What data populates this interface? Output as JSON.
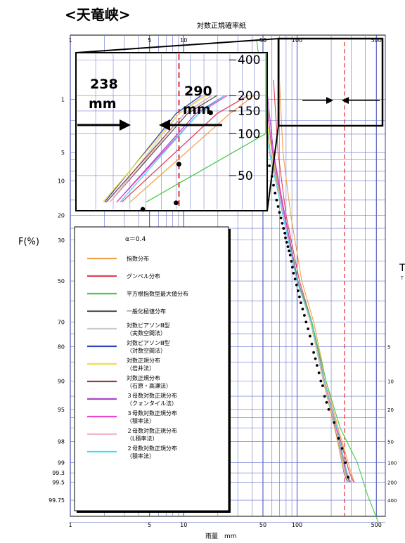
{
  "chart_data": {
    "type": "line",
    "title": "<天竜峡>",
    "paper_title": "対数正規確率紙",
    "xlabel": "雨量　mm",
    "ylabel": "F(%)",
    "right_label": "T",
    "right_label_small": "T",
    "x_scale": "log",
    "x_range": [
      1,
      600
    ],
    "y_scale": "normal-probability",
    "x_ticks": [
      {
        "value": 1,
        "label": "1"
      },
      {
        "value": 5,
        "label": "5"
      },
      {
        "value": 10,
        "label": "10"
      },
      {
        "value": 50,
        "label": "50"
      },
      {
        "value": 100,
        "label": "100"
      },
      {
        "value": 500,
        "label": "500"
      }
    ],
    "y_ticks": [
      {
        "value": 0.25,
        "label": "99.75"
      },
      {
        "value": 0.5,
        "label": "99.5"
      },
      {
        "value": 0.7,
        "label": "99.3"
      },
      {
        "value": 1,
        "label": "99"
      },
      {
        "value": 2,
        "label": "98"
      },
      {
        "value": 5,
        "label": "95"
      },
      {
        "value": 10,
        "label": "90"
      },
      {
        "value": 20,
        "label": "80"
      },
      {
        "value": 30,
        "label": "70"
      },
      {
        "value": 50,
        "label": "50"
      },
      {
        "value": 70,
        "label": "30"
      },
      {
        "value": 80,
        "label": "20"
      },
      {
        "value": 90,
        "label": "10"
      },
      {
        "value": 95,
        "label": "5"
      },
      {
        "value": 99,
        "label": "1"
      }
    ],
    "return_period_ticks": [
      {
        "value": 400,
        "label": "400"
      },
      {
        "value": 200,
        "label": "200"
      },
      {
        "value": 100,
        "label": "100"
      },
      {
        "value": 50,
        "label": "50"
      },
      {
        "value": 20,
        "label": "20"
      },
      {
        "value": 10,
        "label": "10"
      },
      {
        "value": 5,
        "label": "5"
      }
    ],
    "legend_header": "α＝0.4",
    "series": [
      {
        "name": "指数分布",
        "color": "#f2a24a",
        "x": [
          70,
          75,
          88,
          110,
          140,
          180,
          230,
          300,
          320
        ],
        "p": [
          99.5,
          95,
          80,
          50,
          30,
          10,
          3,
          0.7,
          0.5
        ]
      },
      {
        "name": "グンベル分布",
        "color": "#e0405a",
        "x": [
          62,
          68,
          80,
          105,
          135,
          175,
          225,
          290,
          315
        ],
        "p": [
          99.5,
          95,
          80,
          50,
          30,
          10,
          3,
          0.7,
          0.5
        ]
      },
      {
        "name": "平方根指数型最大値分布",
        "color": "#44cc44",
        "x": [
          44,
          58,
          78,
          102,
          135,
          180,
          240,
          340,
          420,
          520
        ],
        "p": [
          99.9,
          95,
          80,
          50,
          30,
          10,
          3,
          1,
          0.3,
          0.1
        ]
      },
      {
        "name": "一般化極値分布",
        "color": "#555555",
        "x": [
          52,
          60,
          76,
          100,
          132,
          172,
          218,
          268,
          290
        ],
        "p": [
          99.5,
          95,
          80,
          50,
          30,
          10,
          3,
          0.7,
          0.5
        ]
      },
      {
        "name": "対数ピアソンⅢ型（実数空間法）",
        "color": "#cccccc",
        "x": [
          45,
          58,
          75,
          100,
          133,
          172,
          218,
          262,
          280
        ],
        "p": [
          99.5,
          95,
          80,
          50,
          30,
          10,
          3,
          0.7,
          0.5
        ]
      },
      {
        "name": "対数ピアソンⅢ型（対数空間法）",
        "color": "#3344bb",
        "x": [
          46,
          58,
          75,
          100,
          132,
          170,
          215,
          260,
          278
        ],
        "p": [
          99.5,
          95,
          80,
          50,
          30,
          10,
          3,
          0.7,
          0.5
        ]
      },
      {
        "name": "対数正規分布（岩井法）",
        "color": "#f0e040",
        "x": [
          48,
          60,
          77,
          100,
          131,
          170,
          214,
          262,
          282
        ],
        "p": [
          99.5,
          95,
          80,
          50,
          30,
          10,
          3,
          0.7,
          0.5
        ]
      },
      {
        "name": "対数正規分布（石原・高瀬法）",
        "color": "#884444",
        "x": [
          50,
          61,
          78,
          101,
          132,
          171,
          216,
          266,
          286
        ],
        "p": [
          99.5,
          95,
          80,
          50,
          30,
          10,
          3,
          0.7,
          0.5
        ]
      },
      {
        "name": "３母数対数正規分布（クォンタイル法）",
        "color": "#aa44cc",
        "x": [
          53,
          62,
          78,
          101,
          133,
          174,
          222,
          274,
          296
        ],
        "p": [
          99.5,
          95,
          80,
          50,
          30,
          10,
          3,
          0.7,
          0.5
        ]
      },
      {
        "name": "３母数対数正規分布（積率法）",
        "color": "#ee44cc",
        "x": [
          50,
          61,
          77,
          100,
          132,
          173,
          222,
          276,
          298
        ],
        "p": [
          99.5,
          95,
          80,
          50,
          30,
          10,
          3,
          0.7,
          0.5
        ]
      },
      {
        "name": "２母数対数正規分布（L積率法）",
        "color": "#f2b8c8",
        "x": [
          45,
          58,
          76,
          100,
          132,
          171,
          218,
          266,
          286
        ],
        "p": [
          99.5,
          95,
          80,
          50,
          30,
          10,
          3,
          0.7,
          0.5
        ]
      },
      {
        "name": "２母数対数正規分布（積率法）",
        "color": "#44ddee",
        "x": [
          44,
          57,
          75,
          100,
          133,
          174,
          224,
          276,
          296
        ],
        "p": [
          99.5,
          95,
          80,
          50,
          30,
          10,
          3,
          0.7,
          0.5
        ]
      }
    ],
    "observations": [
      {
        "x": 44,
        "p": 99.6
      },
      {
        "x": 47,
        "p": 98.3
      },
      {
        "x": 48,
        "p": 97
      },
      {
        "x": 57,
        "p": 93
      },
      {
        "x": 60,
        "p": 91
      },
      {
        "x": 62,
        "p": 89
      },
      {
        "x": 64,
        "p": 87
      },
      {
        "x": 66,
        "p": 85
      },
      {
        "x": 68,
        "p": 83
      },
      {
        "x": 70,
        "p": 81
      },
      {
        "x": 72,
        "p": 79
      },
      {
        "x": 74,
        "p": 77
      },
      {
        "x": 76,
        "p": 75
      },
      {
        "x": 78,
        "p": 73
      },
      {
        "x": 79,
        "p": 71
      },
      {
        "x": 81,
        "p": 69
      },
      {
        "x": 83,
        "p": 67
      },
      {
        "x": 85,
        "p": 65
      },
      {
        "x": 87,
        "p": 63
      },
      {
        "x": 89,
        "p": 60
      },
      {
        "x": 91,
        "p": 57
      },
      {
        "x": 93,
        "p": 54
      },
      {
        "x": 96,
        "p": 51
      },
      {
        "x": 99,
        "p": 48
      },
      {
        "x": 102,
        "p": 45
      },
      {
        "x": 105,
        "p": 42
      },
      {
        "x": 108,
        "p": 39
      },
      {
        "x": 112,
        "p": 36
      },
      {
        "x": 116,
        "p": 33
      },
      {
        "x": 120,
        "p": 30
      },
      {
        "x": 125,
        "p": 27
      },
      {
        "x": 130,
        "p": 24
      },
      {
        "x": 135,
        "p": 21
      },
      {
        "x": 140,
        "p": 18
      },
      {
        "x": 145,
        "p": 16
      },
      {
        "x": 150,
        "p": 14
      },
      {
        "x": 156,
        "p": 12
      },
      {
        "x": 162,
        "p": 10
      },
      {
        "x": 168,
        "p": 9
      },
      {
        "x": 175,
        "p": 7
      },
      {
        "x": 182,
        "p": 6
      },
      {
        "x": 190,
        "p": 5
      },
      {
        "x": 212,
        "p": 3.5
      },
      {
        "x": 232,
        "p": 2.2
      },
      {
        "x": 250,
        "p": 1.6
      },
      {
        "x": 266,
        "p": 1.0
      },
      {
        "x": 282,
        "p": 0.6
      }
    ],
    "reference_line_x": 262,
    "inset": {
      "annotation_low": {
        "value": "238",
        "unit": "mm"
      },
      "annotation_high": {
        "value": "290",
        "unit": "mm"
      },
      "x_range": [
        200,
        330
      ],
      "t_range": [
        30,
        450
      ],
      "t_ticks": [
        {
          "value": 400,
          "label": "400"
        },
        {
          "value": 200,
          "label": "200"
        },
        {
          "value": 150,
          "label": "150"
        },
        {
          "value": 100,
          "label": "100"
        },
        {
          "value": 50,
          "label": "50"
        }
      ],
      "points": [
        {
          "x": 285,
          "t": 145
        },
        {
          "x": 262,
          "t": 60
        },
        {
          "x": 260,
          "t": 33
        },
        {
          "x": 238,
          "t": 30
        }
      ]
    },
    "grid": true,
    "legend_position": "left"
  }
}
